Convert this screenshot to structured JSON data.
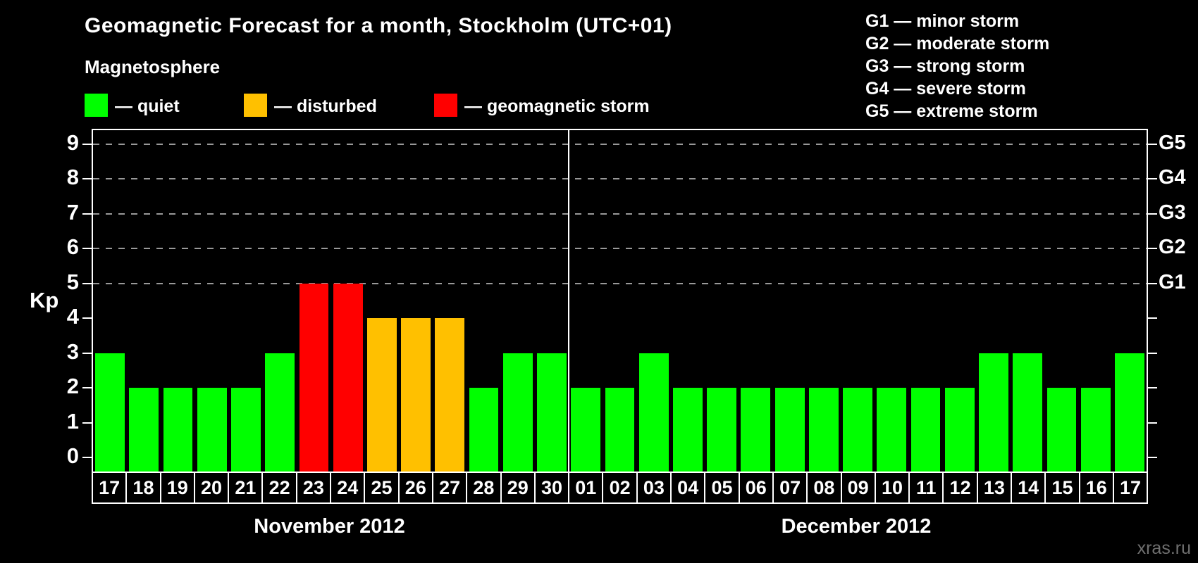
{
  "colors": {
    "quiet": "#00ff00",
    "disturbed": "#ffc000",
    "storm": "#ff0000",
    "background": "#000000",
    "grid": "#999999",
    "axis": "#ffffff",
    "watermark": "#6f6f6f"
  },
  "chart_data": {
    "type": "bar",
    "title": "Geomagnetic Forecast for a month, Stockholm (UTC+01)",
    "subtitle": "Magnetosphere",
    "ylabel": "Kp",
    "yticks": [
      0,
      1,
      2,
      3,
      4,
      5,
      6,
      7,
      8,
      9
    ],
    "ylim": [
      0,
      9.4
    ],
    "grid": "dashed horizontal lines at Kp 5-9 only",
    "gridlines_at": [
      5,
      6,
      7,
      8,
      9
    ],
    "legend": [
      {
        "key": "quiet",
        "label": "— quiet",
        "color": "#00ff00"
      },
      {
        "key": "disturbed",
        "label": "— disturbed",
        "color": "#ffc000"
      },
      {
        "key": "storm",
        "label": "— geomagnetic storm",
        "color": "#ff0000"
      }
    ],
    "g_scale_legend": [
      "G1 — minor storm",
      "G2 — moderate storm",
      "G3 — strong storm",
      "G4 — severe storm",
      "G5 — extreme storm"
    ],
    "right_axis_labels": [
      {
        "label": "G5",
        "kp": 9
      },
      {
        "label": "G4",
        "kp": 8
      },
      {
        "label": "G3",
        "kp": 7
      },
      {
        "label": "G2",
        "kp": 6
      },
      {
        "label": "G1",
        "kp": 5
      }
    ],
    "months": [
      {
        "label": "November 2012",
        "days": 14
      },
      {
        "label": "December 2012",
        "days": 17
      }
    ],
    "days": [
      {
        "day": "17",
        "kp": 3,
        "status": "quiet"
      },
      {
        "day": "18",
        "kp": 2,
        "status": "quiet"
      },
      {
        "day": "19",
        "kp": 2,
        "status": "quiet"
      },
      {
        "day": "20",
        "kp": 2,
        "status": "quiet"
      },
      {
        "day": "21",
        "kp": 2,
        "status": "quiet"
      },
      {
        "day": "22",
        "kp": 3,
        "status": "quiet"
      },
      {
        "day": "23",
        "kp": 5,
        "status": "storm"
      },
      {
        "day": "24",
        "kp": 5,
        "status": "storm"
      },
      {
        "day": "25",
        "kp": 4,
        "status": "disturbed"
      },
      {
        "day": "26",
        "kp": 4,
        "status": "disturbed"
      },
      {
        "day": "27",
        "kp": 4,
        "status": "disturbed"
      },
      {
        "day": "28",
        "kp": 2,
        "status": "quiet"
      },
      {
        "day": "29",
        "kp": 3,
        "status": "quiet"
      },
      {
        "day": "30",
        "kp": 3,
        "status": "quiet"
      },
      {
        "day": "01",
        "kp": 2,
        "status": "quiet"
      },
      {
        "day": "02",
        "kp": 2,
        "status": "quiet"
      },
      {
        "day": "03",
        "kp": 3,
        "status": "quiet"
      },
      {
        "day": "04",
        "kp": 2,
        "status": "quiet"
      },
      {
        "day": "05",
        "kp": 2,
        "status": "quiet"
      },
      {
        "day": "06",
        "kp": 2,
        "status": "quiet"
      },
      {
        "day": "07",
        "kp": 2,
        "status": "quiet"
      },
      {
        "day": "08",
        "kp": 2,
        "status": "quiet"
      },
      {
        "day": "09",
        "kp": 2,
        "status": "quiet"
      },
      {
        "day": "10",
        "kp": 2,
        "status": "quiet"
      },
      {
        "day": "11",
        "kp": 2,
        "status": "quiet"
      },
      {
        "day": "12",
        "kp": 2,
        "status": "quiet"
      },
      {
        "day": "13",
        "kp": 3,
        "status": "quiet"
      },
      {
        "day": "14",
        "kp": 3,
        "status": "quiet"
      },
      {
        "day": "15",
        "kp": 2,
        "status": "quiet"
      },
      {
        "day": "16",
        "kp": 2,
        "status": "quiet"
      },
      {
        "day": "17",
        "kp": 3,
        "status": "quiet"
      }
    ],
    "watermark": "xras.ru"
  }
}
